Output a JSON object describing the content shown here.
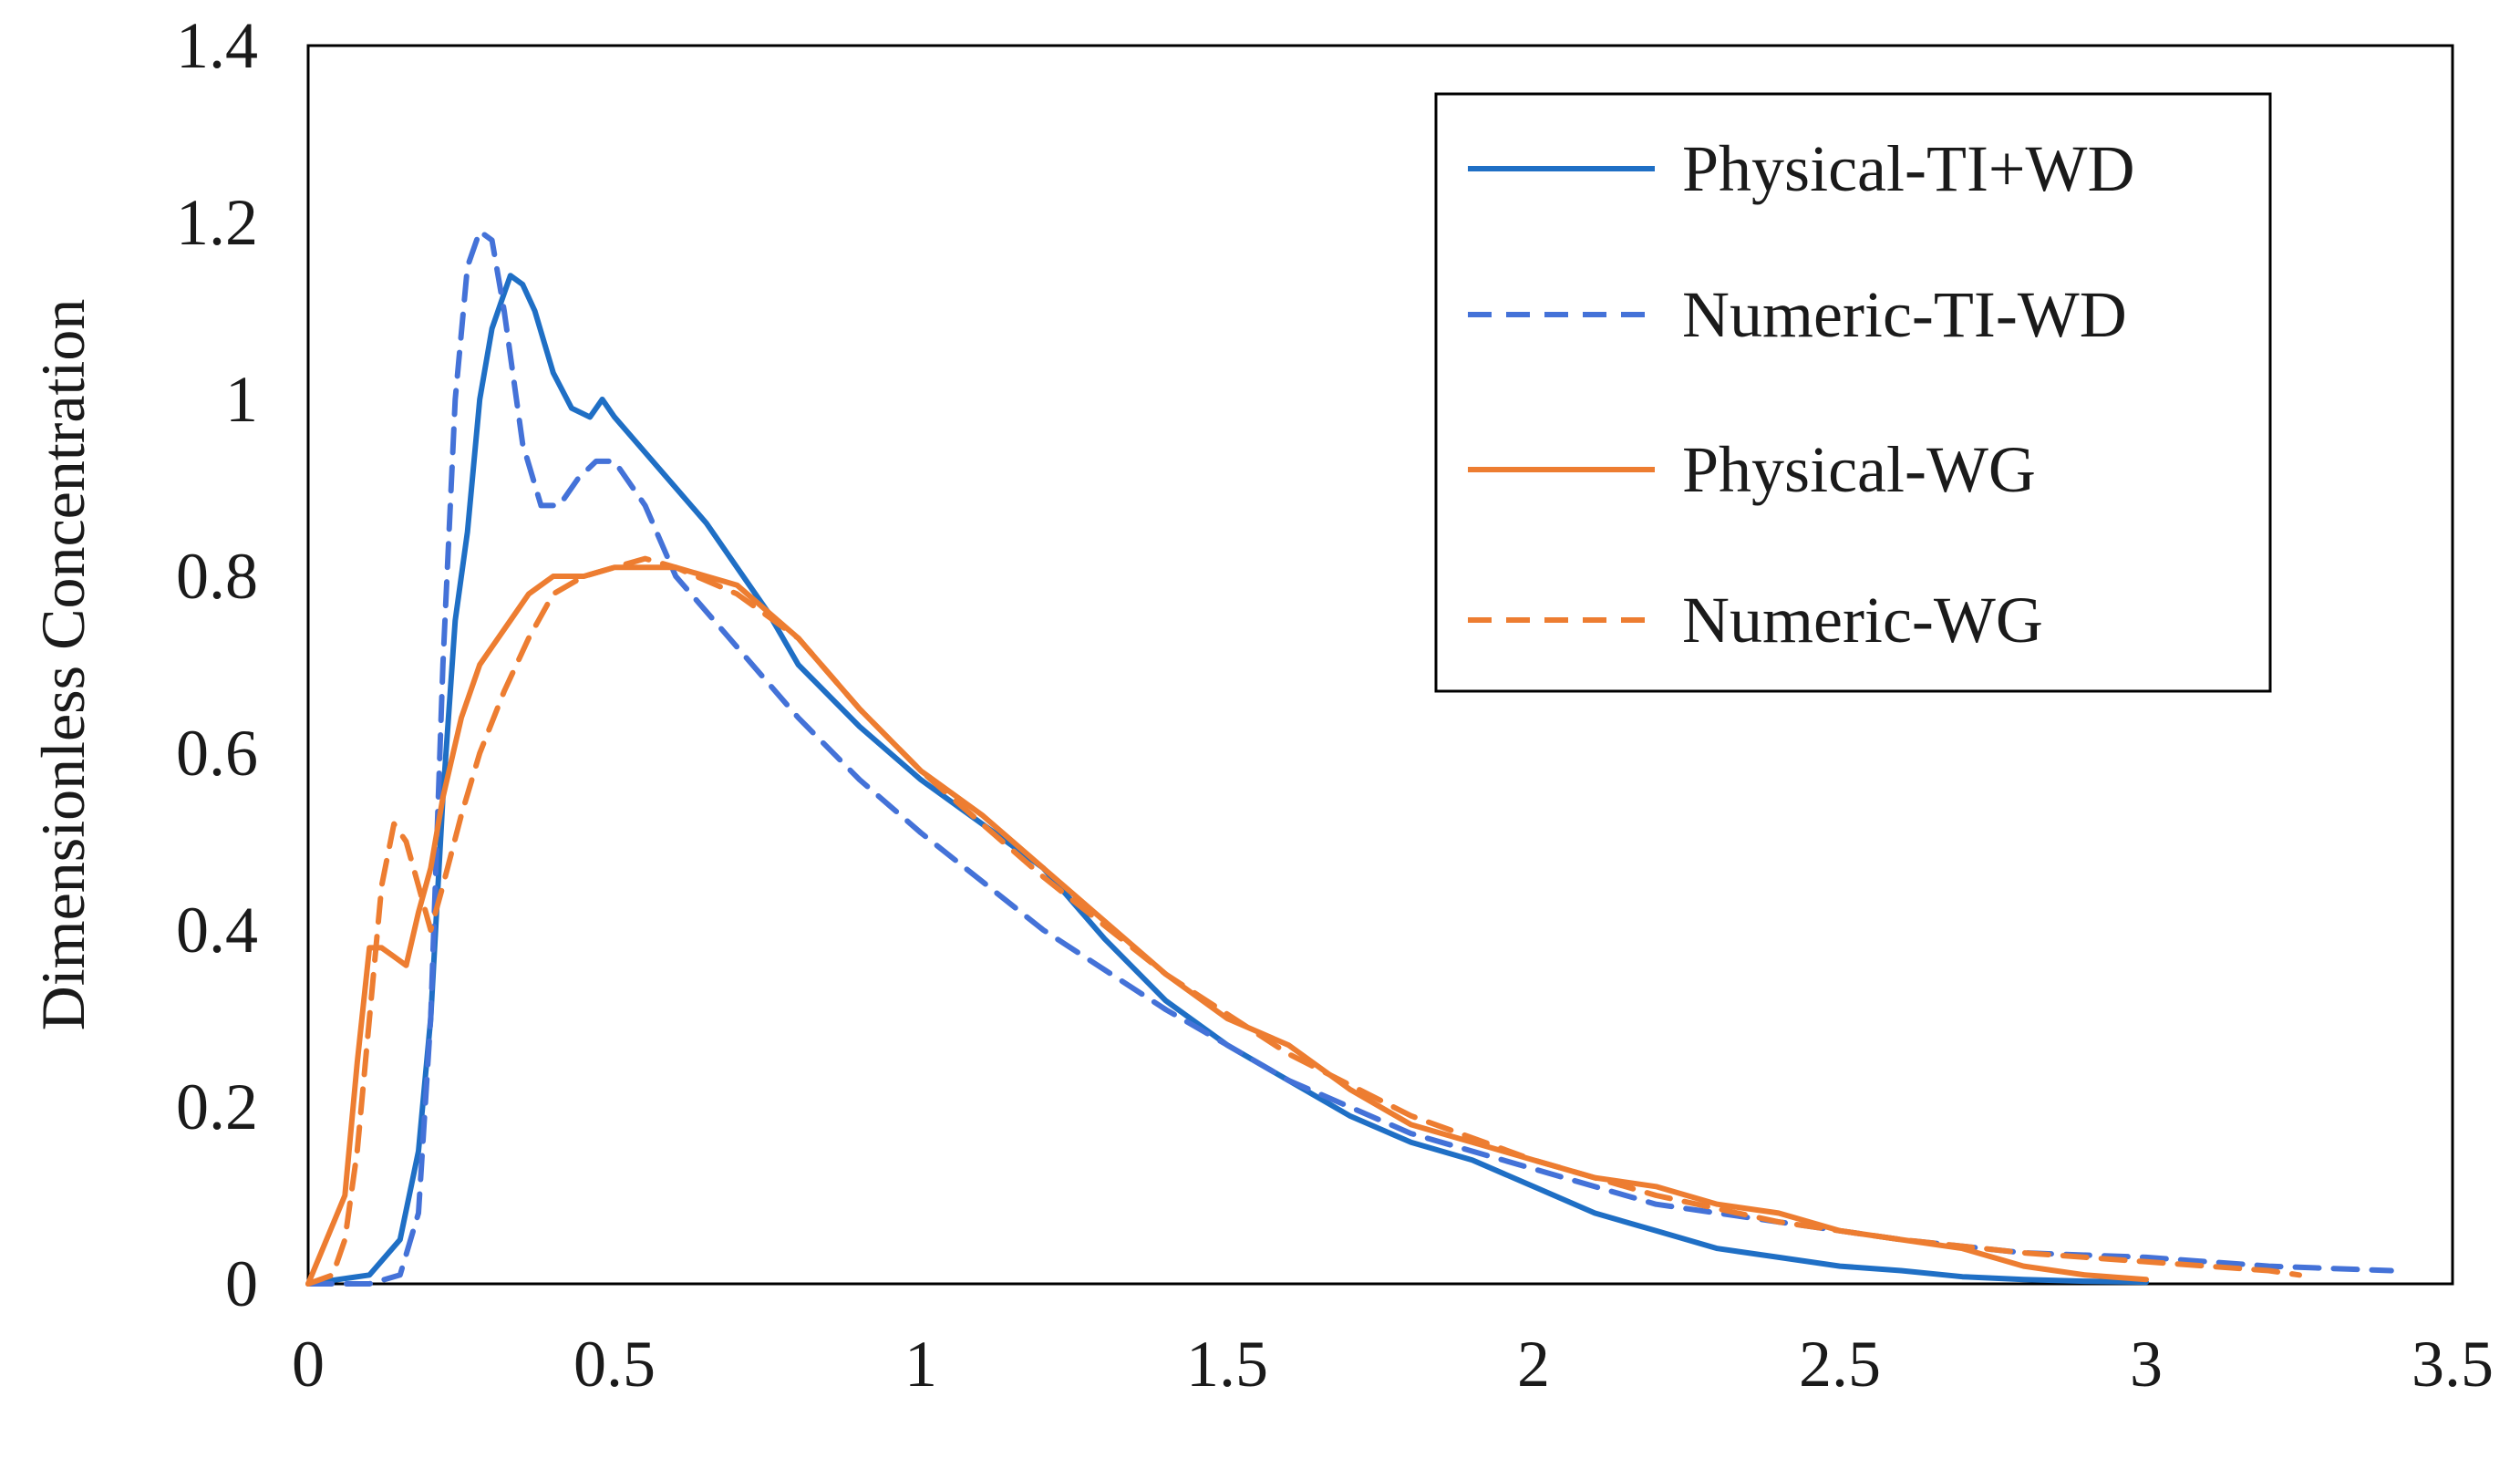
{
  "chart_data": {
    "type": "line",
    "title": "",
    "xlabel": "",
    "ylabel": "Dimensionless Concentration",
    "xlim": [
      0,
      3.5
    ],
    "ylim": [
      0,
      1.4
    ],
    "x_ticks": [
      "0",
      "0.5",
      "1",
      "1.5",
      "2",
      "2.5",
      "3",
      "3.5"
    ],
    "y_ticks": [
      "0",
      "0.2",
      "0.4",
      "0.6",
      "0.8",
      "1",
      "1.2",
      "1.4"
    ],
    "grid": false,
    "legend_position": "top-right",
    "series": [
      {
        "name": "Physical-TI+WD",
        "color": "#1f6fc5",
        "style": "solid",
        "x": [
          0,
          0.1,
          0.15,
          0.18,
          0.2,
          0.22,
          0.24,
          0.26,
          0.28,
          0.3,
          0.32,
          0.33,
          0.35,
          0.37,
          0.4,
          0.43,
          0.46,
          0.48,
          0.5,
          0.55,
          0.6,
          0.65,
          0.7,
          0.75,
          0.8,
          0.9,
          1.0,
          1.1,
          1.2,
          1.3,
          1.4,
          1.5,
          1.6,
          1.7,
          1.8,
          1.9,
          2.0,
          2.1,
          2.2,
          2.3,
          2.4,
          2.5,
          2.6,
          2.7,
          2.8,
          2.9,
          3.0
        ],
        "y": [
          0,
          0.01,
          0.05,
          0.15,
          0.3,
          0.55,
          0.75,
          0.85,
          1.0,
          1.08,
          1.12,
          1.14,
          1.13,
          1.1,
          1.03,
          0.99,
          0.98,
          1.0,
          0.98,
          0.94,
          0.9,
          0.86,
          0.81,
          0.76,
          0.7,
          0.63,
          0.57,
          0.52,
          0.47,
          0.39,
          0.32,
          0.27,
          0.23,
          0.19,
          0.16,
          0.14,
          0.11,
          0.08,
          0.06,
          0.04,
          0.03,
          0.02,
          0.015,
          0.008,
          0.005,
          0.003,
          0.002
        ]
      },
      {
        "name": "Numeric-TI-WD",
        "color": "#4472d8",
        "style": "dashed",
        "x": [
          0,
          0.1,
          0.15,
          0.18,
          0.2,
          0.22,
          0.24,
          0.26,
          0.28,
          0.3,
          0.32,
          0.35,
          0.38,
          0.41,
          0.44,
          0.47,
          0.5,
          0.55,
          0.6,
          0.7,
          0.8,
          0.9,
          1.0,
          1.2,
          1.4,
          1.6,
          1.8,
          2.0,
          2.2,
          2.4,
          2.6,
          2.8,
          3.0,
          3.2,
          3.4
        ],
        "y": [
          0,
          0,
          0.01,
          0.08,
          0.3,
          0.7,
          1.0,
          1.15,
          1.19,
          1.18,
          1.1,
          0.95,
          0.88,
          0.88,
          0.91,
          0.93,
          0.93,
          0.88,
          0.8,
          0.72,
          0.64,
          0.57,
          0.51,
          0.4,
          0.31,
          0.23,
          0.17,
          0.13,
          0.09,
          0.07,
          0.05,
          0.035,
          0.03,
          0.02,
          0.015
        ]
      },
      {
        "name": "Physical-WG",
        "color": "#ed7d31",
        "style": "solid",
        "x": [
          0,
          0.06,
          0.08,
          0.1,
          0.12,
          0.14,
          0.16,
          0.18,
          0.2,
          0.22,
          0.25,
          0.28,
          0.3,
          0.33,
          0.36,
          0.4,
          0.45,
          0.5,
          0.55,
          0.6,
          0.65,
          0.7,
          0.8,
          0.9,
          1.0,
          1.1,
          1.2,
          1.3,
          1.4,
          1.5,
          1.6,
          1.7,
          1.8,
          1.9,
          2.0,
          2.1,
          2.2,
          2.3,
          2.4,
          2.5,
          2.6,
          2.7,
          2.8,
          2.9,
          3.0
        ],
        "y": [
          0,
          0.1,
          0.25,
          0.38,
          0.38,
          0.37,
          0.36,
          0.42,
          0.47,
          0.55,
          0.64,
          0.7,
          0.72,
          0.75,
          0.78,
          0.8,
          0.8,
          0.81,
          0.81,
          0.81,
          0.8,
          0.79,
          0.73,
          0.65,
          0.58,
          0.53,
          0.47,
          0.41,
          0.35,
          0.3,
          0.27,
          0.22,
          0.18,
          0.16,
          0.14,
          0.12,
          0.11,
          0.09,
          0.08,
          0.06,
          0.05,
          0.04,
          0.02,
          0.01,
          0.005
        ]
      },
      {
        "name": "Numeric-WG",
        "color": "#ed7d31",
        "style": "dashed",
        "x": [
          0,
          0.04,
          0.06,
          0.08,
          0.1,
          0.12,
          0.14,
          0.16,
          0.18,
          0.2,
          0.22,
          0.25,
          0.28,
          0.32,
          0.36,
          0.4,
          0.45,
          0.5,
          0.55,
          0.6,
          0.7,
          0.8,
          0.9,
          1.0,
          1.2,
          1.4,
          1.6,
          1.8,
          2.0,
          2.2,
          2.4,
          2.6,
          2.8,
          3.0,
          3.2,
          3.25
        ],
        "y": [
          0,
          0.01,
          0.05,
          0.15,
          0.3,
          0.45,
          0.52,
          0.5,
          0.45,
          0.4,
          0.45,
          0.53,
          0.6,
          0.67,
          0.73,
          0.78,
          0.8,
          0.81,
          0.82,
          0.81,
          0.78,
          0.73,
          0.65,
          0.58,
          0.46,
          0.35,
          0.26,
          0.19,
          0.14,
          0.1,
          0.07,
          0.05,
          0.035,
          0.025,
          0.015,
          0.01
        ]
      }
    ]
  }
}
